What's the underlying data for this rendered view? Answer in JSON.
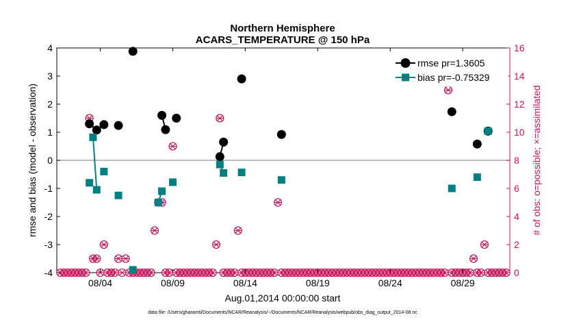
{
  "chart_data": {
    "type": "scatter",
    "title_line1": "Northern Hemisphere",
    "title_line2": "ACARS_TEMPERATURE @ 150 hPa",
    "ylabel_left": "rmse and bias (model - observation)",
    "ylabel_right": "# of obs: o=possible; ×=assimilated",
    "xlabel": "Aug.01,2014 00:00:00 start",
    "footnote": "data file: /Users/gharamti/Documents/NCAR/Reanalysis/~/Documents/NCAR/Reanalysis/webpub/obs_diag_output_2014-08.nc",
    "xlim": [
      0,
      31.25
    ],
    "ylim_left": [
      -4,
      4
    ],
    "ylim_right": [
      0,
      16
    ],
    "x_ticks": [
      {
        "value": 3,
        "label": "08/04"
      },
      {
        "value": 8,
        "label": "08/09"
      },
      {
        "value": 13,
        "label": "08/14"
      },
      {
        "value": 18,
        "label": "08/19"
      },
      {
        "value": 23,
        "label": "08/24"
      },
      {
        "value": 28,
        "label": "08/29"
      }
    ],
    "y_ticks_left": [
      {
        "value": -4,
        "label": "-4"
      },
      {
        "value": -3,
        "label": "-3"
      },
      {
        "value": -2,
        "label": "-2"
      },
      {
        "value": -1,
        "label": "-1"
      },
      {
        "value": 0,
        "label": "0"
      },
      {
        "value": 1,
        "label": "1"
      },
      {
        "value": 2,
        "label": "2"
      },
      {
        "value": 3,
        "label": "3"
      },
      {
        "value": 4,
        "label": "4"
      }
    ],
    "y_ticks_right": [
      {
        "value": 0,
        "label": "0"
      },
      {
        "value": 2,
        "label": "2"
      },
      {
        "value": 4,
        "label": "4"
      },
      {
        "value": 6,
        "label": "6"
      },
      {
        "value": 8,
        "label": "8"
      },
      {
        "value": 10,
        "label": "10"
      },
      {
        "value": 12,
        "label": "12"
      },
      {
        "value": 14,
        "label": "14"
      },
      {
        "value": 16,
        "label": "16"
      }
    ],
    "zero_line": 0,
    "series": [
      {
        "name": "rmse",
        "legend": "rmse pr=1.3605",
        "color": "#000000",
        "marker": "circle",
        "segments": [
          [
            [
              2.25,
              1.3
            ],
            [
              2.75,
              1.08
            ],
            [
              3.25,
              1.27
            ]
          ],
          [
            [
              4.25,
              1.24
            ]
          ],
          [
            [
              5.25,
              3.88
            ]
          ],
          [
            [
              7.25,
              1.6
            ],
            [
              7.5,
              1.09
            ]
          ],
          [
            [
              8.25,
              1.5
            ]
          ],
          [
            [
              11.25,
              0.13
            ],
            [
              11.5,
              0.65
            ]
          ],
          [
            [
              12.75,
              2.9
            ]
          ],
          [
            [
              15.5,
              0.92
            ]
          ],
          [
            [
              27.25,
              1.73
            ]
          ],
          [
            [
              29.0,
              0.58
            ]
          ],
          [
            [
              29.75,
              1.04
            ]
          ]
        ]
      },
      {
        "name": "bias",
        "legend": "bias pr=-0.75329",
        "color": "#008080",
        "marker": "square",
        "segments": [
          [
            [
              2.25,
              -0.8
            ]
          ],
          [
            [
              2.5,
              0.82
            ],
            [
              2.75,
              -1.05
            ]
          ],
          [
            [
              3.25,
              -0.4
            ]
          ],
          [
            [
              4.25,
              -1.25
            ]
          ],
          [
            [
              5.25,
              -3.9
            ]
          ],
          [
            [
              7.0,
              -1.5
            ],
            [
              7.25,
              -1.1
            ]
          ],
          [
            [
              8.0,
              -0.78
            ]
          ],
          [
            [
              11.25,
              -0.15
            ],
            [
              11.5,
              -0.45
            ]
          ],
          [
            [
              12.75,
              -0.43
            ]
          ],
          [
            [
              15.5,
              -0.7
            ]
          ],
          [
            [
              27.25,
              -1.0
            ]
          ],
          [
            [
              29.0,
              -0.6
            ]
          ],
          [
            [
              29.75,
              1.04
            ]
          ]
        ]
      }
    ],
    "obs_color": "#c2185b",
    "obs_counts": [
      {
        "x": 2.25,
        "possible": 11,
        "assimilated": 11
      },
      {
        "x": 2.5,
        "possible": 1,
        "assimilated": 1
      },
      {
        "x": 2.75,
        "possible": 1,
        "assimilated": 1
      },
      {
        "x": 3.25,
        "possible": 2,
        "assimilated": 2
      },
      {
        "x": 4.25,
        "possible": 1,
        "assimilated": 1
      },
      {
        "x": 4.75,
        "possible": 1,
        "assimilated": 1
      },
      {
        "x": 6.75,
        "possible": 3,
        "assimilated": 3
      },
      {
        "x": 7.0,
        "possible": 5,
        "assimilated": 5
      },
      {
        "x": 7.25,
        "possible": 5,
        "assimilated": 5
      },
      {
        "x": 8.0,
        "possible": 9,
        "assimilated": 9
      },
      {
        "x": 11.0,
        "possible": 2,
        "assimilated": 2
      },
      {
        "x": 11.25,
        "possible": 11,
        "assimilated": 11
      },
      {
        "x": 12.5,
        "possible": 3,
        "assimilated": 3
      },
      {
        "x": 15.25,
        "possible": 5,
        "assimilated": 5
      },
      {
        "x": 27.0,
        "possible": 13,
        "assimilated": 13
      },
      {
        "x": 28.75,
        "possible": 1,
        "assimilated": 1
      },
      {
        "x": 29.5,
        "possible": 2,
        "assimilated": 2
      }
    ]
  }
}
